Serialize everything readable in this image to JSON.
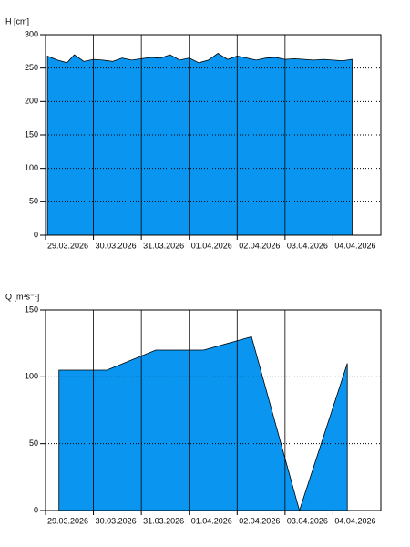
{
  "chart_data": [
    {
      "type": "area",
      "y_label": "H [cm]",
      "color": "#0a96f0",
      "xlim": [
        0,
        7
      ],
      "xticks": [
        {
          "value": 0,
          "label": "29.03.2026"
        },
        {
          "value": 1,
          "label": "30.03.2026"
        },
        {
          "value": 2,
          "label": "31.03.2026"
        },
        {
          "value": 3,
          "label": "01.04.2026"
        },
        {
          "value": 4,
          "label": "02.04.2026"
        },
        {
          "value": 5,
          "label": "03.04.2026"
        },
        {
          "value": 6,
          "label": "04.04.2026"
        }
      ],
      "ylim": [
        0,
        300
      ],
      "yticks": [
        0,
        50,
        100,
        150,
        200,
        250,
        300
      ],
      "grid": true,
      "x": [
        0.04,
        0.25,
        0.45,
        0.6,
        0.8,
        1.0,
        1.2,
        1.4,
        1.6,
        1.8,
        2.0,
        2.2,
        2.4,
        2.6,
        2.8,
        3.0,
        3.2,
        3.4,
        3.6,
        3.8,
        4.0,
        4.2,
        4.4,
        4.6,
        4.8,
        5.0,
        5.2,
        5.4,
        5.6,
        5.8,
        6.0,
        6.2,
        6.4
      ],
      "values": [
        268,
        262,
        258,
        270,
        260,
        263,
        262,
        260,
        265,
        262,
        264,
        266,
        265,
        270,
        262,
        265,
        258,
        262,
        272,
        263,
        268,
        265,
        262,
        265,
        266,
        263,
        264,
        263,
        262,
        263,
        262,
        261,
        263
      ]
    },
    {
      "type": "area",
      "y_label": "Q [m³s⁻¹]",
      "color": "#0a96f0",
      "xlim": [
        0,
        7
      ],
      "xticks": [
        {
          "value": 0,
          "label": "29.03.2026"
        },
        {
          "value": 1,
          "label": "30.03.2026"
        },
        {
          "value": 2,
          "label": "31.03.2026"
        },
        {
          "value": 3,
          "label": "01.04.2026"
        },
        {
          "value": 4,
          "label": "02.04.2026"
        },
        {
          "value": 5,
          "label": "03.04.2026"
        },
        {
          "value": 6,
          "label": "04.04.2026"
        }
      ],
      "ylim": [
        0,
        150
      ],
      "yticks": [
        0,
        50,
        100,
        150
      ],
      "grid": true,
      "x": [
        0.28,
        1.28,
        2.3,
        3.3,
        4.3,
        5.3,
        6.3
      ],
      "values": [
        105,
        105,
        120,
        120,
        130,
        0,
        110
      ]
    }
  ]
}
